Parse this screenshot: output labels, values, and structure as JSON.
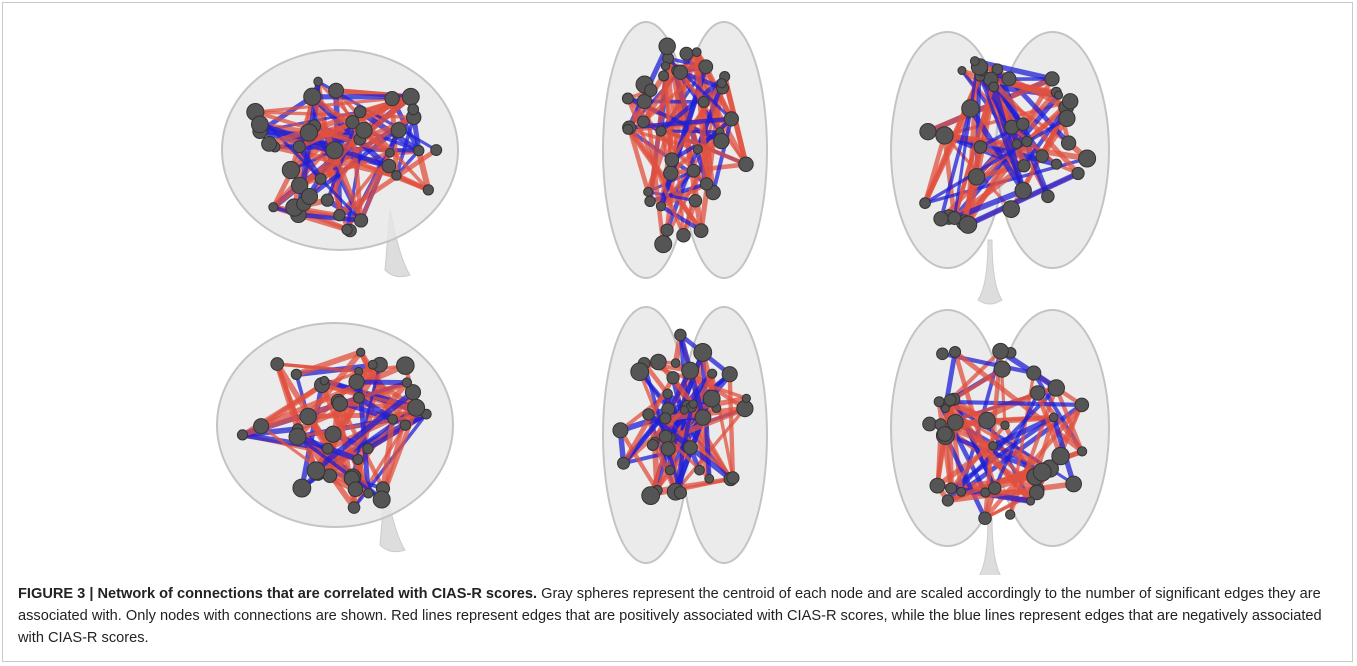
{
  "figure": {
    "label": "FIGURE 3 | Network of connections that are correlated with CIAS-R scores.",
    "caption": "Gray spheres represent the centroid of each node and are scaled accordingly to the number of significant edges they are associated with. Only nodes with connections are shown. Red lines represent edges that are positively associated with CIAS-R scores, while the blue lines represent edges that are negatively associated with CIAS-R scores."
  }
}
